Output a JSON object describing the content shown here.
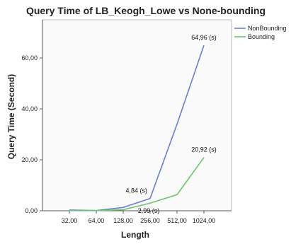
{
  "chart_data": {
    "type": "line",
    "title": "Query Time of LB_Keogh_Lowe vs None-bounding",
    "xlabel": "Length",
    "ylabel": "Query Time (Second)",
    "categories": [
      "32,00",
      "64,00",
      "128,00",
      "256,00",
      "512,00",
      "1024,00"
    ],
    "y_ticks": [
      "0,00",
      "20,00",
      "40,00",
      "60,00"
    ],
    "y_tick_values": [
      0,
      20,
      40,
      60
    ],
    "ylim": [
      0,
      75
    ],
    "grid": false,
    "legend_position": "top-right",
    "series": [
      {
        "name": "NonBounding",
        "color": "#6a7fd0",
        "values": [
          0.3,
          0.1,
          1.3,
          4.84,
          34.0,
          64.96
        ]
      },
      {
        "name": "Bounding",
        "color": "#6cc46c",
        "values": [
          0.05,
          0.05,
          0.4,
          2.99,
          6.3,
          20.92
        ]
      }
    ],
    "annotations": [
      {
        "text": "64,96 (s)",
        "series": 0,
        "index": 5
      },
      {
        "text": "4,84 (s)",
        "series": 0,
        "index": 3
      },
      {
        "text": "20,92 (s)",
        "series": 1,
        "index": 5
      },
      {
        "text": "2,99 (s)",
        "series": 1,
        "index": 3
      }
    ]
  }
}
